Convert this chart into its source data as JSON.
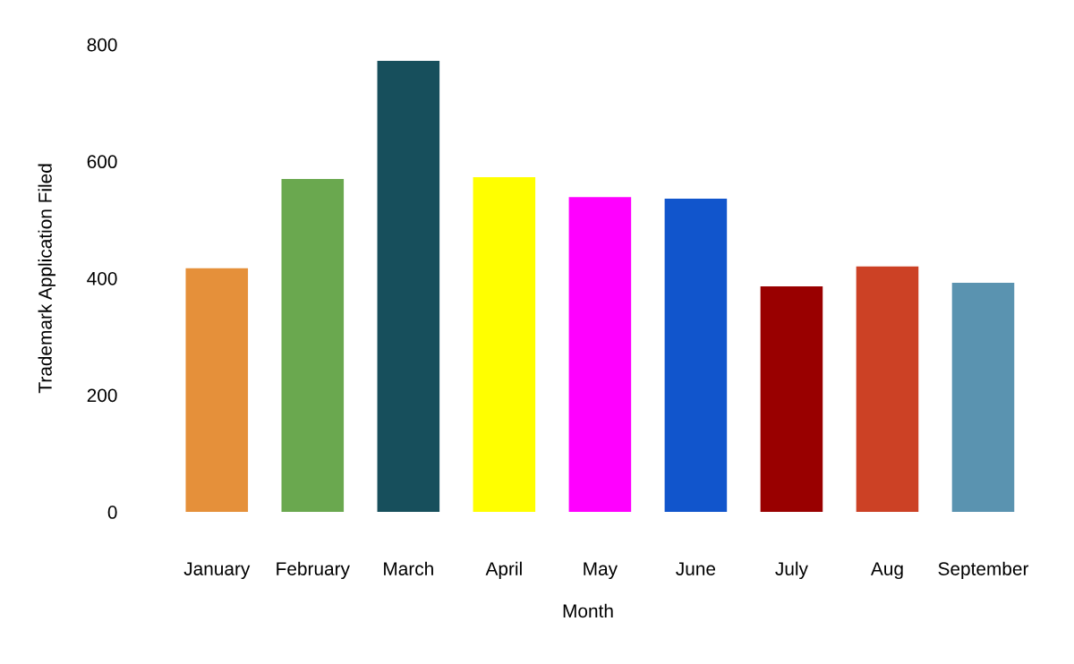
{
  "chart_data": {
    "type": "bar",
    "xlabel": "Month",
    "ylabel": "Trademark Application Filed",
    "categories": [
      "January",
      "February",
      "March",
      "April",
      "May",
      "June",
      "July",
      "Aug",
      "September"
    ],
    "values": [
      417,
      570,
      772,
      573,
      539,
      536,
      386,
      420,
      392
    ],
    "colors": [
      "#e5903a",
      "#6aa84f",
      "#174f5c",
      "#ffff00",
      "#ff00ff",
      "#1155cc",
      "#990000",
      "#cc4125",
      "#5a93b0"
    ],
    "ylim": [
      0,
      800
    ],
    "yticks": [
      0,
      200,
      400,
      600,
      800
    ],
    "grid": false,
    "legend": false
  }
}
